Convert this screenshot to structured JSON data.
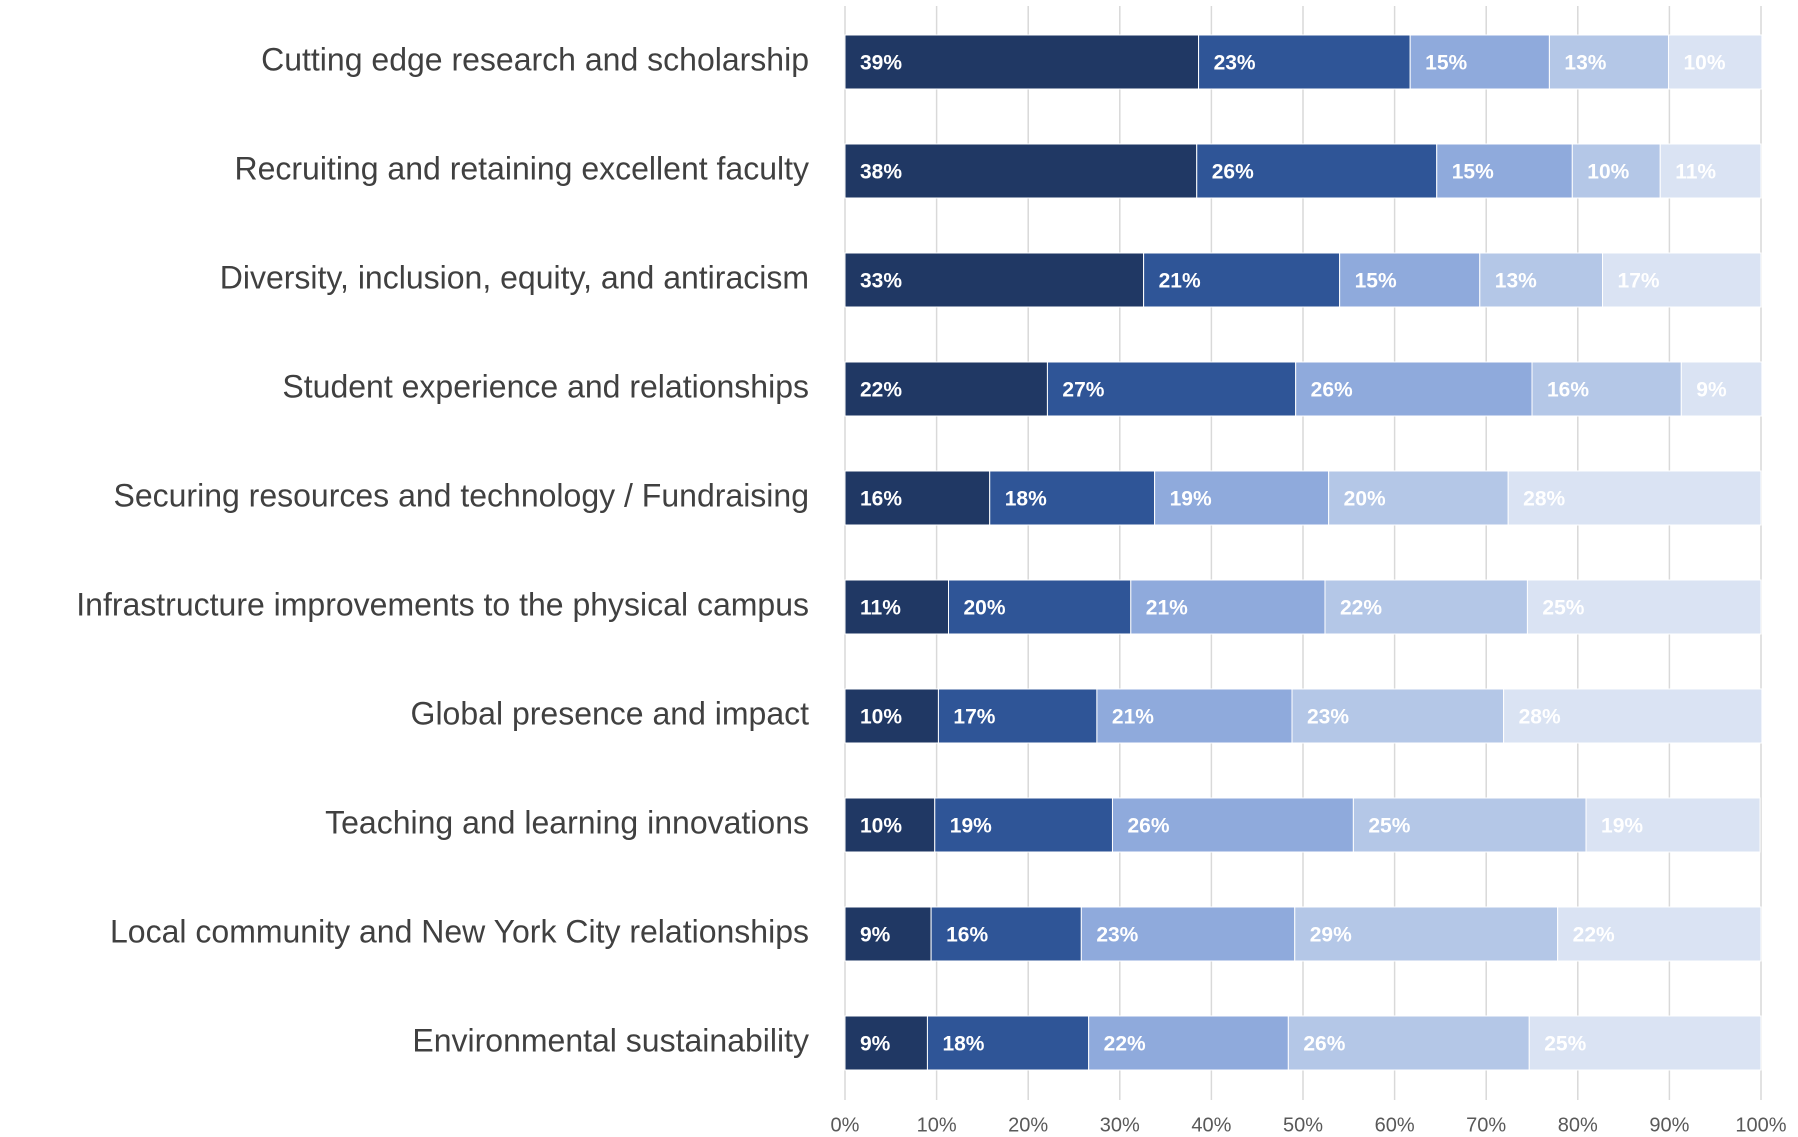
{
  "chart_data": {
    "type": "stacked_barh",
    "categories": [
      "Cutting edge research and scholarship",
      "Recruiting and retaining excellent faculty",
      "Diversity, inclusion, equity, and antiracism",
      "Student experience and relationships",
      "Securing resources and technology / Fundraising",
      "Infrastructure improvements to the physical campus",
      "Global presence and impact",
      "Teaching and learning innovations",
      "Local community and New York City relationships",
      "Environmental sustainability"
    ],
    "series": [
      {
        "color": "#203864",
        "values": [
          38.6,
          38.4,
          32.6,
          22.1,
          15.8,
          11.3,
          10.2,
          9.8,
          9.4,
          9.0
        ],
        "value_labels": [
          "39%",
          "38%",
          "33%",
          "22%",
          "16%",
          "11%",
          "10%",
          "10%",
          "9%",
          "9%"
        ]
      },
      {
        "color": "#2f5597",
        "values": [
          23.1,
          26.2,
          21.4,
          27.1,
          18.0,
          19.9,
          17.3,
          19.4,
          16.4,
          17.6
        ],
        "value_labels": [
          "23%",
          "26%",
          "21%",
          "27%",
          "18%",
          "20%",
          "17%",
          "19%",
          "16%",
          "18%"
        ]
      },
      {
        "color": "#8faadc",
        "values": [
          15.2,
          14.8,
          15.3,
          25.8,
          19.0,
          21.2,
          21.3,
          26.3,
          23.3,
          21.8
        ],
        "value_labels": [
          "15%",
          "15%",
          "15%",
          "26%",
          "19%",
          "21%",
          "21%",
          "26%",
          "23%",
          "22%"
        ]
      },
      {
        "color": "#b4c7e7",
        "values": [
          13.0,
          9.6,
          13.4,
          16.3,
          19.6,
          22.1,
          23.1,
          25.4,
          28.7,
          26.3
        ],
        "value_labels": [
          "13%",
          "10%",
          "13%",
          "16%",
          "20%",
          "22%",
          "23%",
          "25%",
          "29%",
          "26%"
        ]
      },
      {
        "color": "#dae3f3",
        "values": [
          10.2,
          11.0,
          17.3,
          8.8,
          27.6,
          25.5,
          28.2,
          19.0,
          22.2,
          25.3
        ],
        "value_labels": [
          "10%",
          "11%",
          "17%",
          "9%",
          "28%",
          "25%",
          "28%",
          "19%",
          "22%",
          "25%"
        ]
      }
    ],
    "xlim": [
      0,
      100
    ],
    "xticks": [
      {
        "value": 0,
        "label": "0%"
      },
      {
        "value": 10,
        "label": "10%"
      },
      {
        "value": 20,
        "label": "20%"
      },
      {
        "value": 30,
        "label": "30%"
      },
      {
        "value": 40,
        "label": "40%"
      },
      {
        "value": 50,
        "label": "50%"
      },
      {
        "value": 60,
        "label": "60%"
      },
      {
        "value": 70,
        "label": "70%"
      },
      {
        "value": 80,
        "label": "80%"
      },
      {
        "value": 90,
        "label": "90%"
      },
      {
        "value": 100,
        "label": "100%"
      }
    ],
    "grid": true
  }
}
